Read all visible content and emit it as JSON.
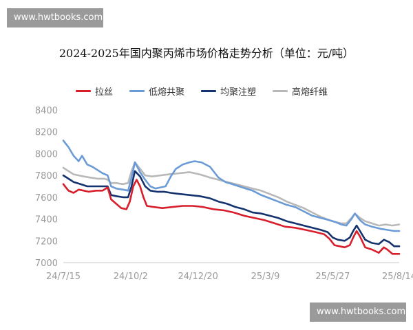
{
  "watermark": {
    "top_text": "www.hwtbooks.com",
    "bottom_text": "www.hwtbooks.com"
  },
  "chart_data": {
    "type": "line",
    "title": "2024-2025年国内聚丙烯市场价格走势分析（单位：元/吨）",
    "xlabel": "",
    "ylabel": "",
    "ylim": [
      7000,
      8400
    ],
    "yticks": [
      7000,
      7200,
      7400,
      7600,
      7800,
      8000,
      8200,
      8400
    ],
    "xlim": [
      0,
      394
    ],
    "xticks": [
      {
        "label": "24/7/15",
        "pos": 0
      },
      {
        "label": "24/10/2",
        "pos": 79
      },
      {
        "label": "24/12/20",
        "pos": 158
      },
      {
        "label": "25/3/9",
        "pos": 237
      },
      {
        "label": "25/5/27",
        "pos": 316
      },
      {
        "label": "25/8/14",
        "pos": 394
      }
    ],
    "grid": false,
    "legend_position": "top",
    "series": [
      {
        "name": "拉丝",
        "color": "#d81e2a",
        "points": [
          [
            0,
            7720
          ],
          [
            6,
            7660
          ],
          [
            12,
            7640
          ],
          [
            18,
            7670
          ],
          [
            24,
            7660
          ],
          [
            30,
            7650
          ],
          [
            38,
            7660
          ],
          [
            46,
            7660
          ],
          [
            52,
            7690
          ],
          [
            56,
            7580
          ],
          [
            62,
            7540
          ],
          [
            68,
            7500
          ],
          [
            74,
            7490
          ],
          [
            78,
            7560
          ],
          [
            82,
            7700
          ],
          [
            86,
            7760
          ],
          [
            90,
            7700
          ],
          [
            94,
            7600
          ],
          [
            98,
            7520
          ],
          [
            106,
            7510
          ],
          [
            116,
            7500
          ],
          [
            128,
            7510
          ],
          [
            140,
            7520
          ],
          [
            152,
            7520
          ],
          [
            164,
            7510
          ],
          [
            176,
            7490
          ],
          [
            188,
            7480
          ],
          [
            200,
            7460
          ],
          [
            212,
            7430
          ],
          [
            224,
            7410
          ],
          [
            236,
            7390
          ],
          [
            248,
            7360
          ],
          [
            260,
            7330
          ],
          [
            272,
            7320
          ],
          [
            284,
            7300
          ],
          [
            296,
            7280
          ],
          [
            306,
            7260
          ],
          [
            312,
            7220
          ],
          [
            318,
            7160
          ],
          [
            324,
            7150
          ],
          [
            330,
            7140
          ],
          [
            336,
            7160
          ],
          [
            340,
            7230
          ],
          [
            344,
            7290
          ],
          [
            348,
            7240
          ],
          [
            354,
            7140
          ],
          [
            362,
            7120
          ],
          [
            370,
            7090
          ],
          [
            376,
            7140
          ],
          [
            380,
            7120
          ],
          [
            386,
            7080
          ],
          [
            394,
            7080
          ]
        ]
      },
      {
        "name": "低熔共聚",
        "color": "#6b9bd7",
        "points": [
          [
            0,
            8120
          ],
          [
            6,
            8060
          ],
          [
            12,
            7980
          ],
          [
            18,
            7930
          ],
          [
            22,
            7980
          ],
          [
            28,
            7900
          ],
          [
            34,
            7880
          ],
          [
            40,
            7850
          ],
          [
            46,
            7820
          ],
          [
            52,
            7800
          ],
          [
            56,
            7700
          ],
          [
            62,
            7680
          ],
          [
            70,
            7670
          ],
          [
            76,
            7660
          ],
          [
            80,
            7780
          ],
          [
            84,
            7920
          ],
          [
            90,
            7830
          ],
          [
            96,
            7760
          ],
          [
            102,
            7700
          ],
          [
            108,
            7680
          ],
          [
            114,
            7690
          ],
          [
            120,
            7700
          ],
          [
            126,
            7790
          ],
          [
            132,
            7860
          ],
          [
            140,
            7900
          ],
          [
            148,
            7920
          ],
          [
            154,
            7930
          ],
          [
            162,
            7920
          ],
          [
            172,
            7880
          ],
          [
            182,
            7780
          ],
          [
            190,
            7740
          ],
          [
            198,
            7720
          ],
          [
            206,
            7700
          ],
          [
            214,
            7680
          ],
          [
            222,
            7660
          ],
          [
            232,
            7620
          ],
          [
            242,
            7590
          ],
          [
            252,
            7560
          ],
          [
            262,
            7530
          ],
          [
            272,
            7510
          ],
          [
            282,
            7470
          ],
          [
            292,
            7430
          ],
          [
            302,
            7410
          ],
          [
            312,
            7390
          ],
          [
            320,
            7370
          ],
          [
            326,
            7350
          ],
          [
            332,
            7340
          ],
          [
            338,
            7400
          ],
          [
            342,
            7450
          ],
          [
            348,
            7390
          ],
          [
            354,
            7350
          ],
          [
            362,
            7330
          ],
          [
            372,
            7310
          ],
          [
            380,
            7300
          ],
          [
            388,
            7290
          ],
          [
            394,
            7290
          ]
        ]
      },
      {
        "name": "均聚注塑",
        "color": "#14326e",
        "points": [
          [
            0,
            7800
          ],
          [
            6,
            7770
          ],
          [
            12,
            7740
          ],
          [
            20,
            7720
          ],
          [
            28,
            7700
          ],
          [
            36,
            7700
          ],
          [
            44,
            7700
          ],
          [
            52,
            7700
          ],
          [
            56,
            7620
          ],
          [
            62,
            7610
          ],
          [
            70,
            7600
          ],
          [
            76,
            7600
          ],
          [
            80,
            7700
          ],
          [
            84,
            7840
          ],
          [
            90,
            7790
          ],
          [
            96,
            7700
          ],
          [
            102,
            7660
          ],
          [
            110,
            7650
          ],
          [
            118,
            7650
          ],
          [
            126,
            7640
          ],
          [
            136,
            7630
          ],
          [
            148,
            7620
          ],
          [
            160,
            7610
          ],
          [
            172,
            7590
          ],
          [
            182,
            7560
          ],
          [
            192,
            7540
          ],
          [
            202,
            7510
          ],
          [
            212,
            7490
          ],
          [
            222,
            7460
          ],
          [
            232,
            7450
          ],
          [
            242,
            7430
          ],
          [
            252,
            7410
          ],
          [
            262,
            7380
          ],
          [
            272,
            7360
          ],
          [
            282,
            7340
          ],
          [
            292,
            7320
          ],
          [
            302,
            7300
          ],
          [
            310,
            7280
          ],
          [
            316,
            7230
          ],
          [
            322,
            7210
          ],
          [
            330,
            7200
          ],
          [
            336,
            7230
          ],
          [
            340,
            7290
          ],
          [
            344,
            7340
          ],
          [
            348,
            7290
          ],
          [
            354,
            7210
          ],
          [
            362,
            7180
          ],
          [
            370,
            7170
          ],
          [
            376,
            7210
          ],
          [
            382,
            7190
          ],
          [
            388,
            7150
          ],
          [
            394,
            7150
          ]
        ]
      },
      {
        "name": "高熔纤维",
        "color": "#b8b8b8",
        "points": [
          [
            0,
            7870
          ],
          [
            6,
            7840
          ],
          [
            12,
            7810
          ],
          [
            18,
            7800
          ],
          [
            24,
            7790
          ],
          [
            32,
            7780
          ],
          [
            40,
            7770
          ],
          [
            48,
            7770
          ],
          [
            52,
            7760
          ],
          [
            56,
            7730
          ],
          [
            62,
            7730
          ],
          [
            70,
            7720
          ],
          [
            76,
            7730
          ],
          [
            80,
            7840
          ],
          [
            84,
            7920
          ],
          [
            90,
            7860
          ],
          [
            96,
            7800
          ],
          [
            104,
            7790
          ],
          [
            114,
            7800
          ],
          [
            124,
            7810
          ],
          [
            136,
            7820
          ],
          [
            148,
            7830
          ],
          [
            160,
            7810
          ],
          [
            172,
            7780
          ],
          [
            182,
            7760
          ],
          [
            192,
            7740
          ],
          [
            202,
            7720
          ],
          [
            212,
            7700
          ],
          [
            222,
            7680
          ],
          [
            232,
            7660
          ],
          [
            242,
            7630
          ],
          [
            252,
            7600
          ],
          [
            262,
            7560
          ],
          [
            272,
            7530
          ],
          [
            282,
            7500
          ],
          [
            292,
            7460
          ],
          [
            302,
            7420
          ],
          [
            312,
            7390
          ],
          [
            320,
            7370
          ],
          [
            326,
            7360
          ],
          [
            332,
            7360
          ],
          [
            338,
            7410
          ],
          [
            342,
            7450
          ],
          [
            348,
            7410
          ],
          [
            354,
            7380
          ],
          [
            362,
            7360
          ],
          [
            370,
            7340
          ],
          [
            378,
            7350
          ],
          [
            386,
            7340
          ],
          [
            394,
            7350
          ]
        ]
      }
    ]
  }
}
